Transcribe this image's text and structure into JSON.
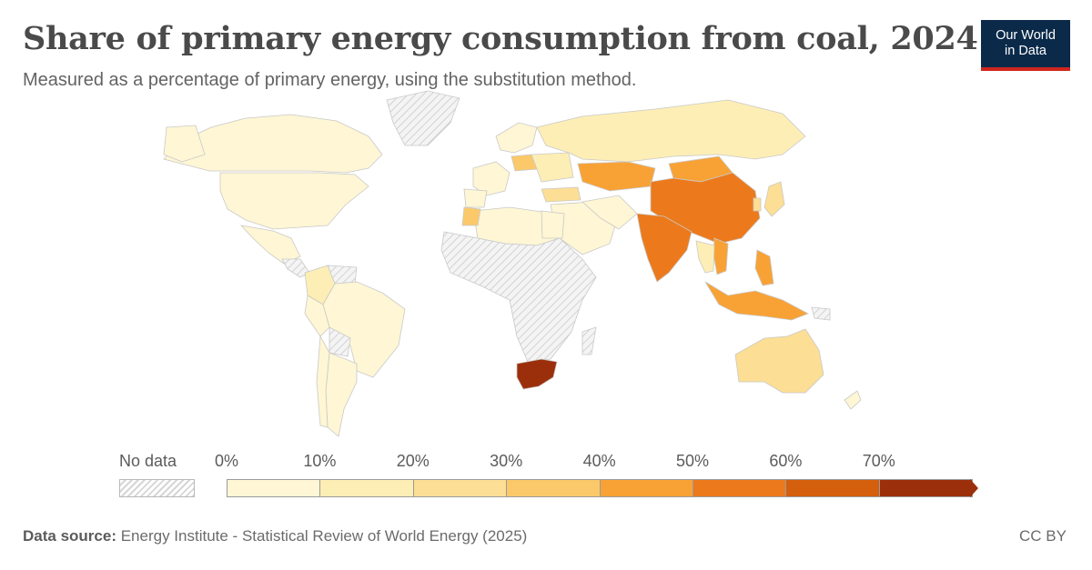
{
  "header": {
    "title": "Share of primary energy consumption from coal, 2024",
    "subtitle": "Measured as a percentage of primary energy, using the substitution method."
  },
  "logo": {
    "line1": "Our World",
    "line2": "in Data"
  },
  "legend": {
    "no_data_label": "No data",
    "ticks": [
      "0%",
      "10%",
      "20%",
      "30%",
      "40%",
      "50%",
      "60%",
      "70%"
    ],
    "colors": [
      "#fef6d4",
      "#fdeeb5",
      "#fcde94",
      "#fbc96a",
      "#f8a236",
      "#ec7a1c",
      "#d45f0d",
      "#9c2f0b"
    ],
    "no_data_pattern": "diagonal-hatch"
  },
  "colors": {
    "land_base": "#fef6d4",
    "no_data": "#eeeeee",
    "border": "#c9c9c9"
  },
  "map_data": {
    "type": "choropleth",
    "metric_unit": "%",
    "regions": [
      {
        "name": "United States",
        "bin": 0
      },
      {
        "name": "Canada",
        "bin": 0
      },
      {
        "name": "Mexico",
        "bin": 0
      },
      {
        "name": "Colombia",
        "bin": 1
      },
      {
        "name": "Brazil",
        "bin": 0
      },
      {
        "name": "Russia",
        "bin": 1
      },
      {
        "name": "Poland",
        "bin": 3
      },
      {
        "name": "Kazakhstan",
        "bin": 4
      },
      {
        "name": "Mongolia",
        "bin": 4
      },
      {
        "name": "China",
        "bin": 5
      },
      {
        "name": "India",
        "bin": 5
      },
      {
        "name": "Vietnam",
        "bin": 4
      },
      {
        "name": "Indonesia",
        "bin": 4
      },
      {
        "name": "Philippines",
        "bin": 4
      },
      {
        "name": "South Africa",
        "bin": 7
      },
      {
        "name": "Morocco",
        "bin": 3
      },
      {
        "name": "Turkey",
        "bin": 2
      },
      {
        "name": "Australia",
        "bin": 2
      },
      {
        "name": "Japan",
        "bin": 2
      },
      {
        "name": "South Korea",
        "bin": 2
      }
    ]
  },
  "footer": {
    "source_label": "Data source:",
    "source_text": "Energy Institute - Statistical Review of World Energy (2025)",
    "license": "CC BY"
  }
}
